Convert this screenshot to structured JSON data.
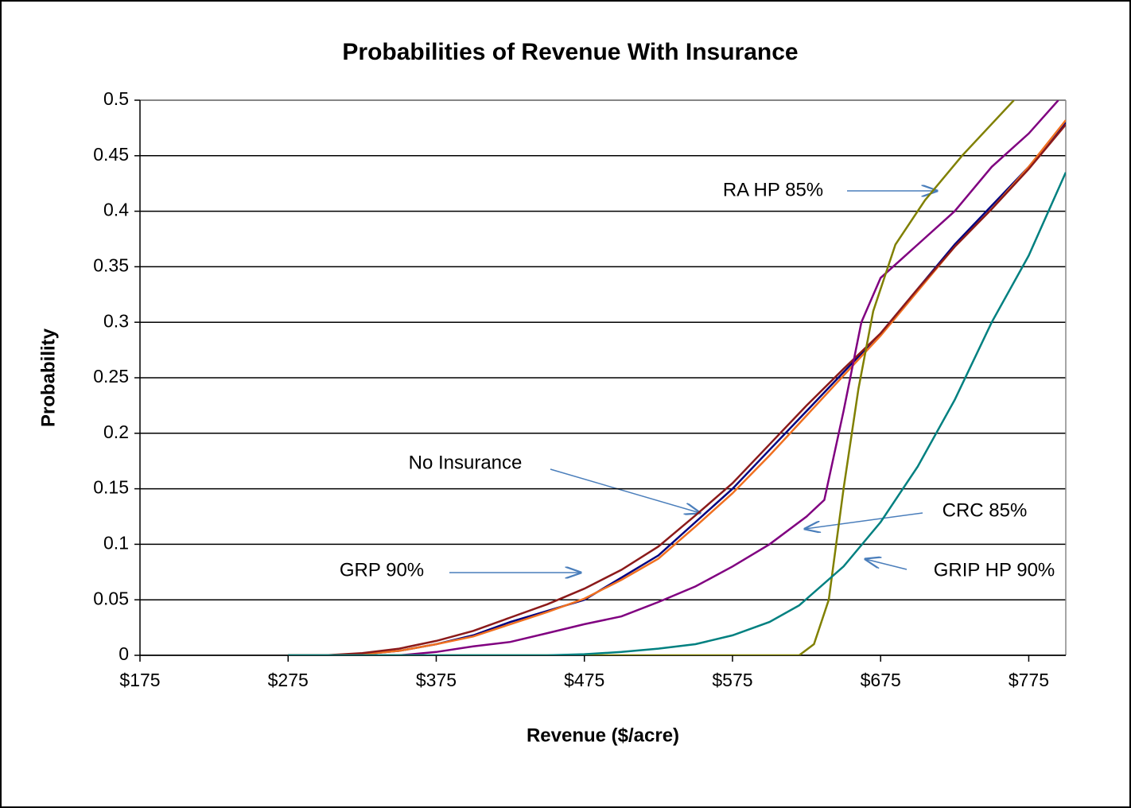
{
  "chart_data": {
    "type": "line",
    "title": "Probabilities of Revenue With Insurance",
    "xlabel": "Revenue ($/acre)",
    "ylabel": "Probability",
    "xlim": [
      175,
      800
    ],
    "ylim": [
      0,
      0.5
    ],
    "xticks": [
      {
        "value": 175,
        "label": "$175"
      },
      {
        "value": 275,
        "label": "$275"
      },
      {
        "value": 375,
        "label": "$375"
      },
      {
        "value": 475,
        "label": "$475"
      },
      {
        "value": 575,
        "label": "$575"
      },
      {
        "value": 675,
        "label": "$675"
      },
      {
        "value": 775,
        "label": "$775"
      }
    ],
    "yticks": [
      0,
      0.05,
      0.1,
      0.15,
      0.2,
      0.25,
      0.3,
      0.35,
      0.4,
      0.45,
      0.5
    ],
    "grid": true,
    "series": [
      {
        "name": "No Insurance",
        "color": "#000080",
        "x": [
          275,
          300,
          325,
          350,
          375,
          400,
          425,
          450,
          475,
          500,
          525,
          550,
          575,
          600,
          625,
          650,
          675,
          700,
          725,
          750,
          775,
          800
        ],
        "values": [
          0,
          0,
          0.001,
          0.004,
          0.01,
          0.018,
          0.03,
          0.04,
          0.05,
          0.07,
          0.09,
          0.12,
          0.15,
          0.185,
          0.22,
          0.255,
          0.29,
          0.33,
          0.37,
          0.405,
          0.44,
          0.48
        ]
      },
      {
        "name": "GRP 90%",
        "color": "#f07020",
        "x": [
          275,
          300,
          325,
          350,
          375,
          400,
          425,
          450,
          475,
          500,
          525,
          550,
          575,
          600,
          625,
          650,
          675,
          700,
          725,
          750,
          775,
          800
        ],
        "values": [
          0,
          0,
          0.001,
          0.004,
          0.01,
          0.017,
          0.028,
          0.039,
          0.051,
          0.068,
          0.087,
          0.116,
          0.146,
          0.18,
          0.216,
          0.252,
          0.288,
          0.328,
          0.368,
          0.402,
          0.44,
          0.482
        ]
      },
      {
        "color": "#8b1a1a",
        "x": [
          275,
          300,
          325,
          350,
          375,
          400,
          425,
          450,
          475,
          500,
          525,
          550,
          575,
          600,
          625,
          650,
          675,
          700,
          725,
          750,
          775,
          800
        ],
        "values": [
          0,
          0,
          0.002,
          0.006,
          0.013,
          0.022,
          0.034,
          0.046,
          0.06,
          0.077,
          0.098,
          0.126,
          0.155,
          0.19,
          0.225,
          0.258,
          0.29,
          0.33,
          0.368,
          0.402,
          0.438,
          0.478
        ]
      },
      {
        "name": "CRC 85%",
        "color": "#800080",
        "x": [
          275,
          350,
          375,
          400,
          425,
          450,
          475,
          500,
          525,
          550,
          575,
          600,
          625,
          637,
          650,
          662,
          675,
          700,
          725,
          750,
          775,
          795
        ],
        "values": [
          0,
          0,
          0.003,
          0.008,
          0.012,
          0.02,
          0.028,
          0.035,
          0.048,
          0.062,
          0.08,
          0.1,
          0.125,
          0.14,
          0.22,
          0.3,
          0.34,
          0.37,
          0.4,
          0.44,
          0.47,
          0.5
        ]
      },
      {
        "name": "RA HP 85%",
        "color": "#808000",
        "x": [
          275,
          600,
          620,
          630,
          640,
          650,
          660,
          670,
          685,
          705,
          730,
          765
        ],
        "values": [
          0,
          0,
          0,
          0.01,
          0.05,
          0.15,
          0.24,
          0.31,
          0.37,
          0.41,
          0.45,
          0.5
        ]
      },
      {
        "name": "GRIP HP 90%",
        "color": "#008080",
        "x": [
          275,
          450,
          475,
          500,
          525,
          550,
          575,
          600,
          620,
          650,
          675,
          700,
          725,
          750,
          775,
          800
        ],
        "values": [
          0,
          0,
          0.001,
          0.003,
          0.006,
          0.01,
          0.018,
          0.03,
          0.045,
          0.08,
          0.12,
          0.17,
          0.23,
          0.3,
          0.36,
          0.435
        ]
      }
    ]
  }
}
